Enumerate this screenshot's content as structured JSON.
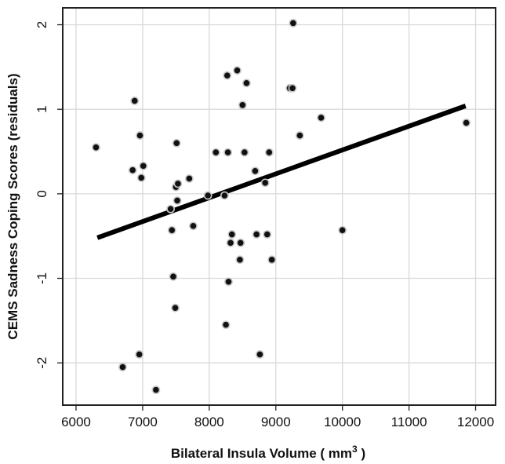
{
  "chart_data": {
    "type": "scatter",
    "title": "",
    "xlabel": "Bilateral Insula Volume ( mm",
    "xlabel_superscript": "3",
    "xlabel_suffix": " )",
    "ylabel": "CEMS Sadness Coping Scores (residuals)",
    "xlim": [
      5800,
      12300
    ],
    "ylim": [
      -2.5,
      2.2
    ],
    "x_ticks": [
      6000,
      7000,
      8000,
      9000,
      10000,
      11000,
      12000
    ],
    "y_ticks": [
      -2,
      -1,
      0,
      1,
      2
    ],
    "grid": true,
    "legend": "none",
    "point_color": "#111111",
    "line_color": "#000000",
    "fit_line": {
      "x": [
        6320,
        11850
      ],
      "y": [
        -0.52,
        1.04
      ]
    },
    "points": [
      {
        "x": 6300,
        "y": 0.55
      },
      {
        "x": 6700,
        "y": -2.05
      },
      {
        "x": 6850,
        "y": 0.28
      },
      {
        "x": 6880,
        "y": 1.1
      },
      {
        "x": 6950,
        "y": -1.9
      },
      {
        "x": 6960,
        "y": 0.69
      },
      {
        "x": 6980,
        "y": 0.19
      },
      {
        "x": 7010,
        "y": 0.33
      },
      {
        "x": 7200,
        "y": -2.32
      },
      {
        "x": 7420,
        "y": -0.18
      },
      {
        "x": 7440,
        "y": -0.43
      },
      {
        "x": 7460,
        "y": -0.98
      },
      {
        "x": 7490,
        "y": -1.35
      },
      {
        "x": 7500,
        "y": 0.08
      },
      {
        "x": 7510,
        "y": 0.6
      },
      {
        "x": 7530,
        "y": 0.12
      },
      {
        "x": 7520,
        "y": -0.08
      },
      {
        "x": 7700,
        "y": 0.18
      },
      {
        "x": 7760,
        "y": -0.38
      },
      {
        "x": 7980,
        "y": -0.02
      },
      {
        "x": 8100,
        "y": 0.49
      },
      {
        "x": 8230,
        "y": -0.02
      },
      {
        "x": 8250,
        "y": -1.55
      },
      {
        "x": 8270,
        "y": 1.4
      },
      {
        "x": 8280,
        "y": 0.49
      },
      {
        "x": 8290,
        "y": -1.04
      },
      {
        "x": 8320,
        "y": -0.58
      },
      {
        "x": 8340,
        "y": -0.48
      },
      {
        "x": 8420,
        "y": 1.46
      },
      {
        "x": 8460,
        "y": -0.78
      },
      {
        "x": 8470,
        "y": -0.58
      },
      {
        "x": 8500,
        "y": 1.05
      },
      {
        "x": 8530,
        "y": 0.49
      },
      {
        "x": 8560,
        "y": 1.31
      },
      {
        "x": 8690,
        "y": 0.27
      },
      {
        "x": 8710,
        "y": -0.48
      },
      {
        "x": 8760,
        "y": -1.9
      },
      {
        "x": 8840,
        "y": 0.13
      },
      {
        "x": 8870,
        "y": -0.48
      },
      {
        "x": 8900,
        "y": 0.49
      },
      {
        "x": 8940,
        "y": -0.78
      },
      {
        "x": 9210,
        "y": 1.25
      },
      {
        "x": 9250,
        "y": 1.25
      },
      {
        "x": 9260,
        "y": 2.02
      },
      {
        "x": 9360,
        "y": 0.69
      },
      {
        "x": 9680,
        "y": 0.9
      },
      {
        "x": 10000,
        "y": -0.43
      },
      {
        "x": 11860,
        "y": 0.84
      }
    ]
  }
}
